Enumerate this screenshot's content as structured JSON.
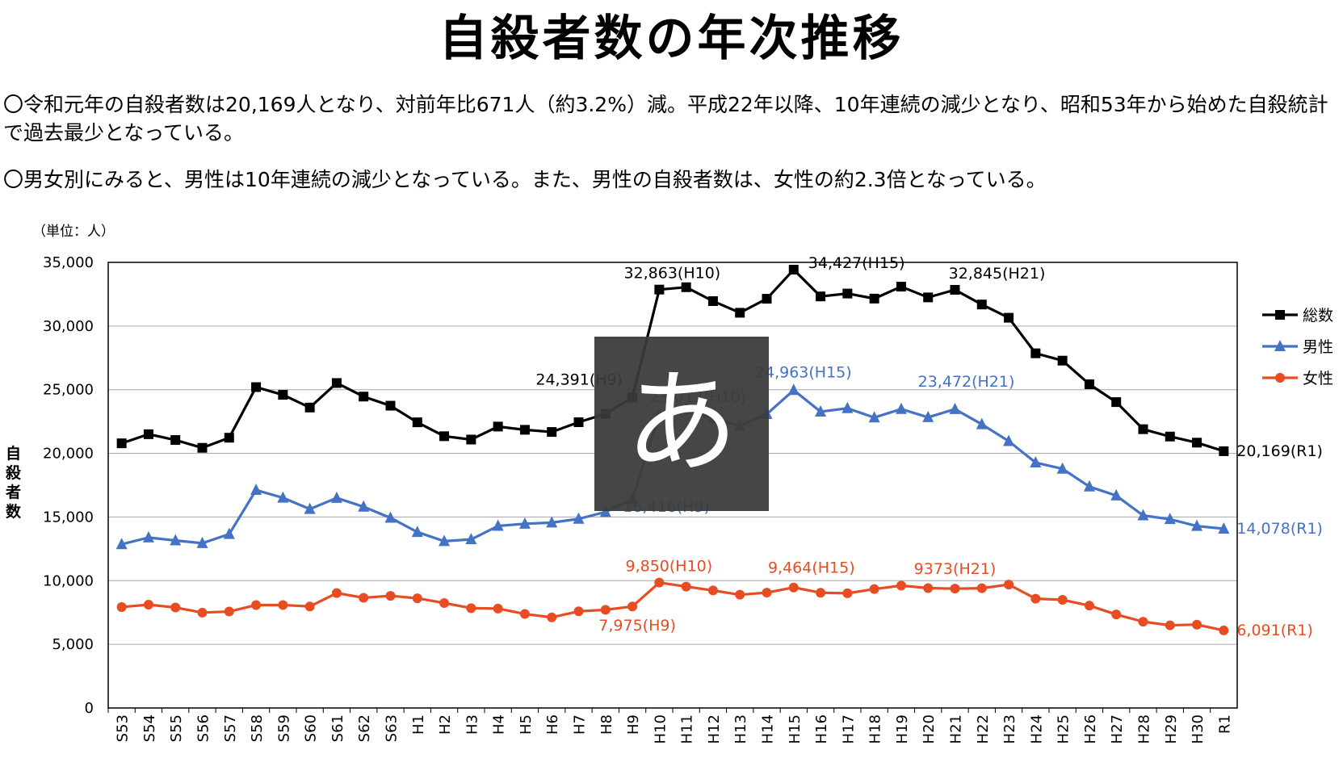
{
  "title": "自殺者数の年次推移",
  "paragraphs": [
    "〇令和元年の自殺者数は20,169人となり、対前年比671人（約3.2%）減。平成22年以降、10年連続の減少となり、昭和53年から始めた自殺統計で過去最少となっている。",
    "〇男女別にみると、男性は10年連続の減少となっている。また、男性の自殺者数は、女性の約2.3倍となっている。"
  ],
  "ime_overlay": {
    "glyph": "あ"
  },
  "chart_data": {
    "type": "line",
    "unit_label": "（単位：人）",
    "ylabel": "自殺者数",
    "ylim": [
      0,
      35000
    ],
    "yticks": [
      0,
      5000,
      10000,
      15000,
      20000,
      25000,
      30000,
      35000
    ],
    "ytick_labels": [
      "0",
      "5,000",
      "10,000",
      "15,000",
      "20,000",
      "25,000",
      "30,000",
      "35,000"
    ],
    "grid": true,
    "legend_position": "right",
    "categories": [
      "S53",
      "S54",
      "S55",
      "S56",
      "S57",
      "S58",
      "S59",
      "S60",
      "S61",
      "S62",
      "S63",
      "H1",
      "H2",
      "H3",
      "H4",
      "H5",
      "H6",
      "H7",
      "H8",
      "H9",
      "H10",
      "H11",
      "H12",
      "H13",
      "H14",
      "H15",
      "H16",
      "H17",
      "H18",
      "H19",
      "H20",
      "H21",
      "H22",
      "H23",
      "H24",
      "H25",
      "H26",
      "H27",
      "H28",
      "H29",
      "H30",
      "R1"
    ],
    "series": [
      {
        "name": "総数",
        "color": "#000000",
        "marker": "square",
        "values": [
          20788,
          21503,
          21048,
          20434,
          21228,
          25202,
          24596,
          23599,
          25524,
          24460,
          23742,
          22436,
          21346,
          21084,
          22104,
          21851,
          21679,
          22445,
          23104,
          24391,
          32863,
          33048,
          31957,
          31042,
          32143,
          34427,
          32325,
          32552,
          32155,
          33093,
          32249,
          32845,
          31690,
          30651,
          27858,
          27283,
          25427,
          24025,
          21897,
          21321,
          20840,
          20169
        ]
      },
      {
        "name": "男性",
        "color": "#4472c4",
        "marker": "triangle",
        "values": [
          12859,
          13386,
          13155,
          12942,
          13654,
          17116,
          16508,
          15624,
          16497,
          15802,
          14934,
          13818,
          13102,
          13242,
          14296,
          14468,
          14560,
          14853,
          15393,
          16416,
          23013,
          23512,
          22727,
          22144,
          23080,
          24963,
          23272,
          23540,
          22813,
          23478,
          22831,
          23472,
          22283,
          20955,
          19273,
          18787,
          17386,
          16681,
          15121,
          14826,
          14290,
          14078
        ]
      },
      {
        "name": "女性",
        "color": "#e84c22",
        "marker": "circle",
        "values": [
          7929,
          8117,
          7893,
          7492,
          7574,
          8086,
          8088,
          7975,
          9027,
          8658,
          8808,
          8618,
          8244,
          7842,
          7808,
          7383,
          7119,
          7592,
          7711,
          7975,
          9850,
          9536,
          9230,
          8898,
          9063,
          9464,
          9053,
          9012,
          9342,
          9615,
          9418,
          9373,
          9407,
          9696,
          8585,
          8496,
          8041,
          7344,
          6776,
          6495,
          6550,
          6091
        ]
      }
    ],
    "annotations": [
      {
        "series": "総数",
        "category": "H9",
        "text": "24,391(H9)"
      },
      {
        "series": "総数",
        "category": "H10",
        "text": "32,863(H10)"
      },
      {
        "series": "総数",
        "category": "H15",
        "text": "34,427(H15)"
      },
      {
        "series": "総数",
        "category": "H21",
        "text": "32,845(H21)"
      },
      {
        "series": "総数",
        "category": "R1",
        "text": "20,169(R1)"
      },
      {
        "series": "男性",
        "category": "H9",
        "text": "16,416(H9)"
      },
      {
        "series": "男性",
        "category": "H10",
        "text": "23,013(H10)"
      },
      {
        "series": "男性",
        "category": "H15",
        "text": "24,963(H15)"
      },
      {
        "series": "男性",
        "category": "H21",
        "text": "23,472(H21)"
      },
      {
        "series": "男性",
        "category": "R1",
        "text": "14,078(R1)"
      },
      {
        "series": "女性",
        "category": "H9",
        "text": "7,975(H9)"
      },
      {
        "series": "女性",
        "category": "H10",
        "text": "9,850(H10)"
      },
      {
        "series": "女性",
        "category": "H15",
        "text": "9,464(H15)"
      },
      {
        "series": "女性",
        "category": "H21",
        "text": "9373(H21)"
      },
      {
        "series": "女性",
        "category": "R1",
        "text": "6,091(R1)"
      }
    ]
  }
}
